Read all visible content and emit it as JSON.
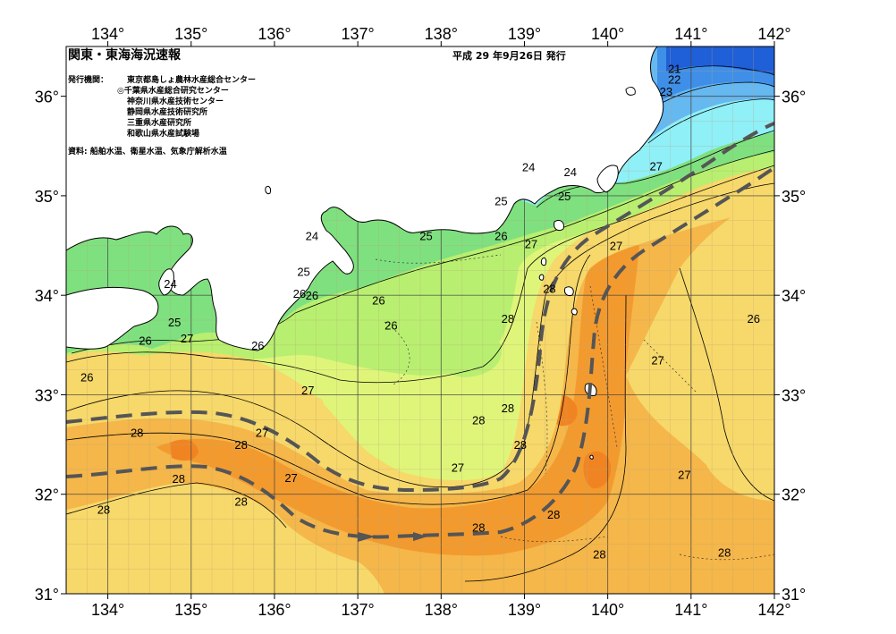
{
  "header": {
    "title": "関東・東海海況速報",
    "issue_date": "平成 29 年9月26日 発行",
    "agency_label": "発行機関：",
    "agencies": [
      "東京都島しょ農林水産総合センター",
      "◎千葉県水産総合研究センター",
      "神奈川県水産技術センター",
      "静岡県水産技術研究所",
      "三重県水産研究所",
      "和歌山県水産試験場"
    ],
    "source": "資料: 船舶水温、衛星水温、気象庁解析水温"
  },
  "map": {
    "lon_range": [
      133.5,
      142
    ],
    "lat_range": [
      31,
      36.5
    ],
    "x_ticks": [
      "134°",
      "135°",
      "136°",
      "137°",
      "138°",
      "139°",
      "140°",
      "141°",
      "142°"
    ],
    "y_ticks": [
      "36°",
      "35°",
      "34°",
      "33°",
      "32°",
      "31°"
    ],
    "isotherm_labels": [
      {
        "text": "21",
        "lon": 140.8,
        "lat": 36.28
      },
      {
        "text": "22",
        "lon": 140.8,
        "lat": 36.17
      },
      {
        "text": "23",
        "lon": 140.7,
        "lat": 36.05
      },
      {
        "text": "24",
        "lon": 139.05,
        "lat": 35.29
      },
      {
        "text": "24",
        "lon": 139.55,
        "lat": 35.24
      },
      {
        "text": "25",
        "lon": 139.48,
        "lat": 35.0
      },
      {
        "text": "25",
        "lon": 138.72,
        "lat": 34.95
      },
      {
        "text": "25",
        "lon": 137.82,
        "lat": 34.6
      },
      {
        "text": "26",
        "lon": 138.72,
        "lat": 34.6
      },
      {
        "text": "24",
        "lon": 136.45,
        "lat": 34.6
      },
      {
        "text": "25",
        "lon": 136.35,
        "lat": 34.24
      },
      {
        "text": "26",
        "lon": 136.3,
        "lat": 34.02
      },
      {
        "text": "26",
        "lon": 136.45,
        "lat": 34.0
      },
      {
        "text": "26",
        "lon": 137.25,
        "lat": 33.95
      },
      {
        "text": "27",
        "lon": 139.08,
        "lat": 34.52
      },
      {
        "text": "27",
        "lon": 140.58,
        "lat": 35.3
      },
      {
        "text": "27",
        "lon": 140.1,
        "lat": 34.5
      },
      {
        "text": "28",
        "lon": 139.3,
        "lat": 34.07
      },
      {
        "text": "28",
        "lon": 138.8,
        "lat": 33.77
      },
      {
        "text": "24",
        "lon": 134.75,
        "lat": 34.12
      },
      {
        "text": "25",
        "lon": 134.8,
        "lat": 33.73
      },
      {
        "text": "26",
        "lon": 134.45,
        "lat": 33.55
      },
      {
        "text": "27",
        "lon": 134.95,
        "lat": 33.57
      },
      {
        "text": "26",
        "lon": 135.8,
        "lat": 33.5
      },
      {
        "text": "26",
        "lon": 133.75,
        "lat": 33.18
      },
      {
        "text": "26",
        "lon": 137.4,
        "lat": 33.7
      },
      {
        "text": "27",
        "lon": 136.4,
        "lat": 33.05
      },
      {
        "text": "27",
        "lon": 135.85,
        "lat": 32.62
      },
      {
        "text": "28",
        "lon": 134.35,
        "lat": 32.62
      },
      {
        "text": "28",
        "lon": 135.6,
        "lat": 32.5
      },
      {
        "text": "28",
        "lon": 138.45,
        "lat": 32.75
      },
      {
        "text": "28",
        "lon": 138.8,
        "lat": 32.87
      },
      {
        "text": "28",
        "lon": 138.95,
        "lat": 32.5
      },
      {
        "text": "27",
        "lon": 136.2,
        "lat": 32.17
      },
      {
        "text": "27",
        "lon": 138.2,
        "lat": 32.27
      },
      {
        "text": "28",
        "lon": 134.85,
        "lat": 32.16
      },
      {
        "text": "28",
        "lon": 135.6,
        "lat": 31.93
      },
      {
        "text": "28",
        "lon": 133.95,
        "lat": 31.85
      },
      {
        "text": "28",
        "lon": 138.45,
        "lat": 31.67
      },
      {
        "text": "28",
        "lon": 139.35,
        "lat": 31.8
      },
      {
        "text": "28",
        "lon": 139.9,
        "lat": 31.4
      },
      {
        "text": "28",
        "lon": 141.4,
        "lat": 31.42
      },
      {
        "text": "27",
        "lon": 140.92,
        "lat": 32.2
      },
      {
        "text": "27",
        "lon": 140.6,
        "lat": 33.35
      },
      {
        "text": "26",
        "lon": 141.75,
        "lat": 33.77
      }
    ]
  },
  "colors": {
    "frame": "#000000",
    "grid": "#b8a878",
    "land": "#ffffff",
    "t20": "#1f5fd8",
    "t22": "#3f8fe8",
    "t23": "#66b8f0",
    "t24": "#8ff0f8",
    "t25": "#7fe07f",
    "t26": "#b8ef70",
    "t26b": "#dff57a",
    "t27": "#f7d86a",
    "t28": "#f5b64a",
    "t28b": "#f39a2e",
    "t29": "#f18422",
    "kuroshio": "#555555"
  }
}
